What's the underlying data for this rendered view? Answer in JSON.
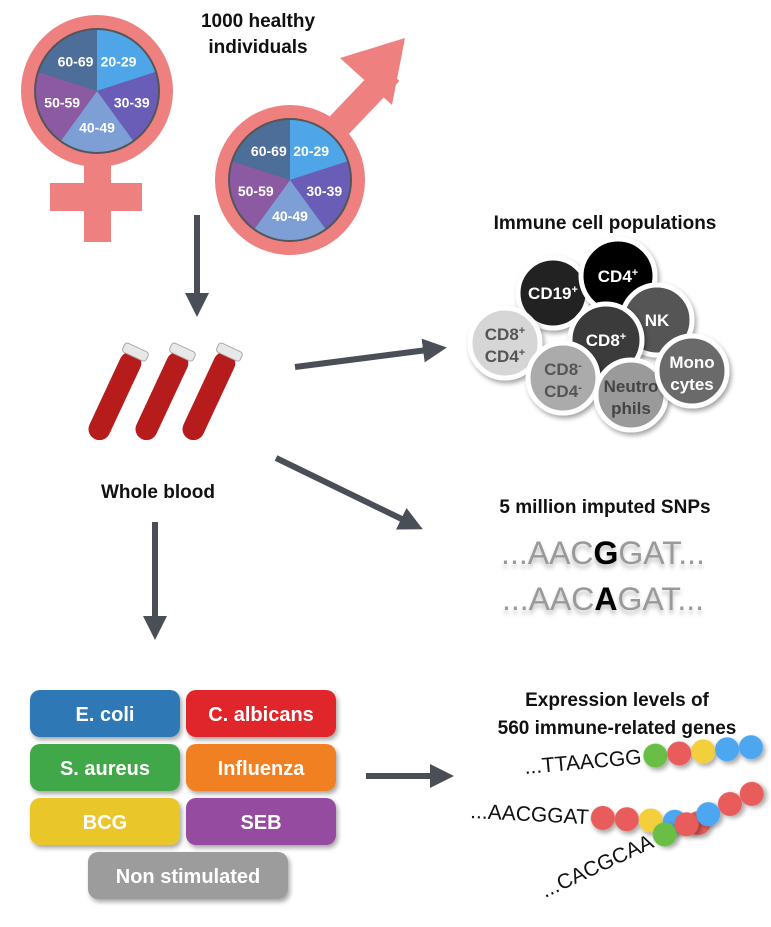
{
  "cohort": {
    "title_line1": "1000 healthy individuals",
    "title_line1a": "1000 healthy",
    "title_line2": "individuals",
    "age_groups": [
      "20-29",
      "30-39",
      "40-49",
      "50-59",
      "60-69"
    ],
    "age_colors": [
      "#4ea6e8",
      "#6a5db8",
      "#7d9fd6",
      "#8b5aa2",
      "#4e6e9a"
    ],
    "symbol_color": "#ee8080"
  },
  "blood": {
    "label": "Whole blood"
  },
  "cells": {
    "title": "Immune cell populations",
    "items": [
      {
        "line1": "CD19",
        "sup1": "+",
        "line2": "",
        "sup2": ""
      },
      {
        "line1": "CD4",
        "sup1": "+",
        "line2": "",
        "sup2": ""
      },
      {
        "line1": "NK",
        "sup1": "",
        "line2": "",
        "sup2": ""
      },
      {
        "line1": "CD8",
        "sup1": "+",
        "line2": "CD4",
        "sup2": "+"
      },
      {
        "line1": "CD8",
        "sup1": "+",
        "line2": "",
        "sup2": ""
      },
      {
        "line1": "CD8",
        "sup1": "-",
        "line2": "CD4",
        "sup2": "-"
      },
      {
        "line1": "Neutro",
        "sup1": "",
        "line2": "phils",
        "sup2": ""
      },
      {
        "line1": "Mono",
        "sup1": "",
        "line2": "cytes",
        "sup2": ""
      }
    ]
  },
  "snps": {
    "title": "5 million imputed SNPs",
    "seq1": {
      "pre": "...AAC",
      "allele": "G",
      "post": "GAT..."
    },
    "seq2": {
      "pre": "...AAC",
      "allele": "A",
      "post": "GAT..."
    }
  },
  "stimuli": [
    {
      "label": "E. coli",
      "color": "#2f78b6"
    },
    {
      "label": "C. albicans",
      "color": "#e0262a"
    },
    {
      "label": "S. aureus",
      "color": "#3fa84a"
    },
    {
      "label": "Influenza",
      "color": "#f18024"
    },
    {
      "label": "BCG",
      "color": "#e9c62c"
    },
    {
      "label": "SEB",
      "color": "#954b9f"
    },
    {
      "label": "Non stimulated",
      "color": "#9c9c9c"
    }
  ],
  "expression": {
    "title_line1": "Expression levels of",
    "title_line2": "560 immune-related genes",
    "strands": [
      {
        "seq": "...TTAACGG",
        "beads": [
          "#6bbd45",
          "#e85c5c",
          "#f2cf3a",
          "#4ea6f0",
          "#4ea6f0"
        ]
      },
      {
        "seq": "...AACGGAT",
        "beads": [
          "#e85c5c",
          "#e85c5c",
          "#f2cf3a",
          "#4ea6f0",
          "#e85c5c"
        ]
      },
      {
        "seq": "...CACGCAA",
        "beads": [
          "#6bbd45",
          "#e85c5c",
          "#4ea6f0",
          "#e85c5c",
          "#e85c5c"
        ]
      }
    ]
  }
}
